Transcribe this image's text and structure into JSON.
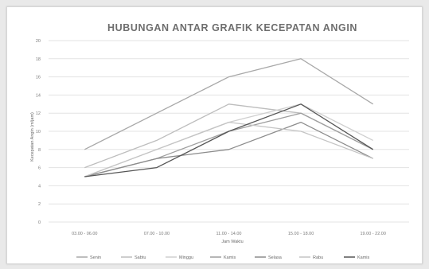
{
  "chart_data": {
    "type": "line",
    "title": "HUBUNGAN ANTAR GRAFIK KECEPATAN ANGIN",
    "xlabel": "Jam Waktu",
    "ylabel": "Kecepatan Angin (m/jam)",
    "categories": [
      "03.00 - 06.00",
      "07.00 - 10.00",
      "11.00 - 14.00",
      "15.00 - 18.00",
      "19.00 - 22.00"
    ],
    "ylim": [
      0,
      20
    ],
    "yticks": [
      0,
      2,
      4,
      6,
      8,
      10,
      12,
      14,
      16,
      18,
      20
    ],
    "grid": true,
    "legend_position": "bottom",
    "series": [
      {
        "name": "Senin",
        "values": [
          8,
          12,
          16,
          18,
          13
        ],
        "color": "#a8a8a8"
      },
      {
        "name": "Sabtu",
        "values": [
          6,
          9,
          13,
          12,
          8
        ],
        "color": "#bdbdbd"
      },
      {
        "name": "Minggu",
        "values": [
          5,
          8,
          11,
          13,
          9
        ],
        "color": "#cfcfcf"
      },
      {
        "name": "Kamis",
        "values": [
          5,
          7,
          10,
          12,
          8
        ],
        "color": "#9e9e9e"
      },
      {
        "name": "Selasa",
        "values": [
          5,
          7,
          8,
          11,
          7
        ],
        "color": "#8c8c8c"
      },
      {
        "name": "Rabu",
        "values": [
          5,
          8,
          11,
          10,
          7
        ],
        "color": "#c4c4c4"
      },
      {
        "name": "Kamis",
        "values": [
          5,
          6,
          10,
          13,
          8
        ],
        "color": "#555555"
      }
    ]
  }
}
